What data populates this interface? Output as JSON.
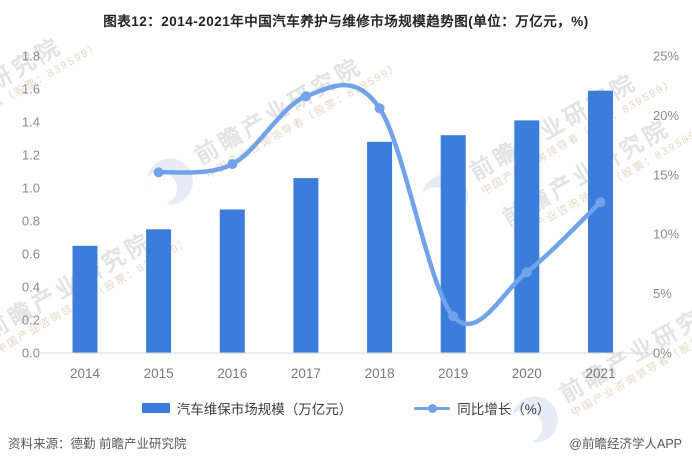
{
  "title": "图表12：2014-2021年中国汽车养护与维修市场规模趋势图(单位：万亿元，%)",
  "colors": {
    "bar": "#3C7DDB",
    "line": "#72A3EA",
    "axis_line": "#D8D8D8",
    "tick_text": "#8A8A8A",
    "title_text": "#242424",
    "footer_text": "#595959"
  },
  "chart_data": {
    "type": "bar+line combo",
    "title": "图表12：2014-2021年中国汽车养护与维修市场规模趋势图(单位：万亿元，%)",
    "categories": [
      "2014",
      "2015",
      "2016",
      "2017",
      "2018",
      "2019",
      "2020",
      "2021"
    ],
    "series": [
      {
        "name": "汽车维保市场规模（万亿元）",
        "type": "bar",
        "axis": "left",
        "values": [
          0.65,
          0.75,
          0.87,
          1.06,
          1.28,
          1.32,
          1.41,
          1.59
        ]
      },
      {
        "name": "同比增长（%）",
        "type": "line",
        "axis": "right",
        "values": [
          null,
          15.2,
          15.9,
          21.6,
          20.6,
          3.1,
          6.8,
          12.7
        ]
      }
    ],
    "left_axis": {
      "min": 0.0,
      "max": 1.8,
      "step": 0.2,
      "labels": [
        "0.0",
        "0.2",
        "0.4",
        "0.6",
        "0.8",
        "1.0",
        "1.2",
        "1.4",
        "1.6",
        "1.8"
      ]
    },
    "right_axis": {
      "min": 0,
      "max": 25,
      "step": 5,
      "labels": [
        "0%",
        "5%",
        "10%",
        "15%",
        "20%",
        "25%"
      ]
    },
    "grid": "off",
    "legend_position": "bottom"
  },
  "legend": {
    "bar_label": "汽车维保市场规模（万亿元）",
    "line_label": "同比增长（%）"
  },
  "watermark": {
    "line1": "前瞻产业研究院",
    "line2": "中国产业咨询领导者（股票：839599）"
  },
  "footer": {
    "source": "资料来源：德勤 前瞻产业研究院",
    "credit": "@前瞻经济学人APP"
  }
}
